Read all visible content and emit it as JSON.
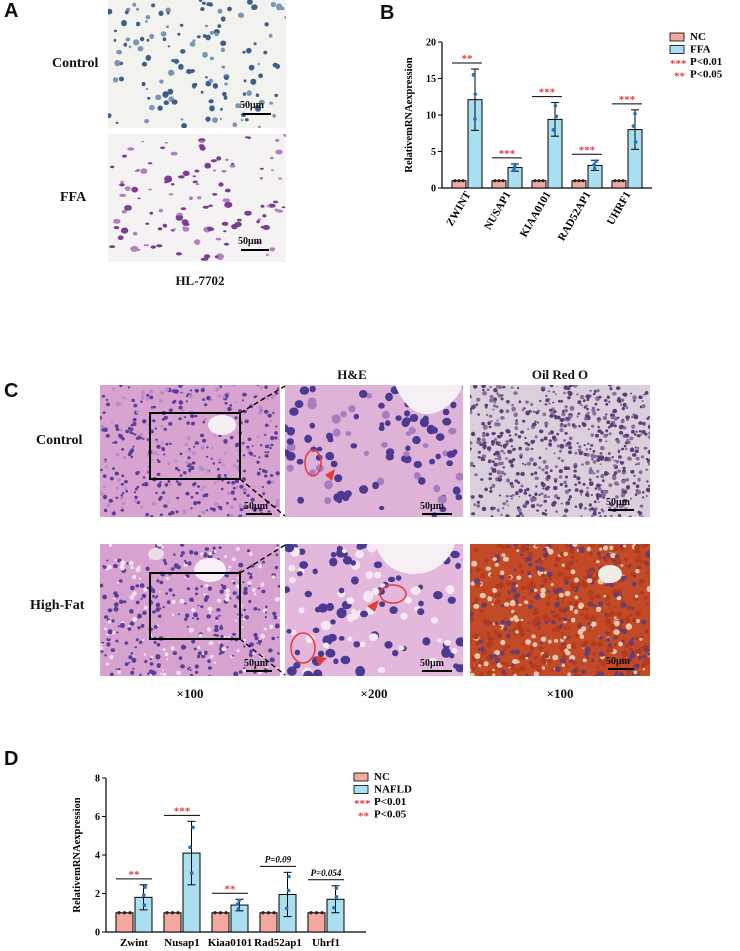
{
  "panelA": {
    "letter": "A",
    "row_labels": [
      "Control",
      "FFA"
    ],
    "scale_label": "50μm",
    "caption": "HL-7702"
  },
  "panelC": {
    "letter": "C",
    "col_header_he": "H&E",
    "col_header_oil": "Oil Red O",
    "row_labels": [
      "Control",
      "High-Fat"
    ],
    "scale_label": "50μm",
    "magnifications": [
      "×100",
      "×200",
      "×100"
    ]
  },
  "colors": {
    "nc_fill": "#f2a9a0",
    "ffa_fill": "#a9dff0",
    "sig_red": "#e53b3b",
    "he_bg": "#d9a3cf",
    "nuclei": "#5a3f9a",
    "oil_red": "#b23a1e"
  },
  "chart_data": [
    {
      "panel": "B",
      "type": "bar",
      "categories": [
        "ZWINT",
        "NUSAP1",
        "KIAA0101",
        "RAD52AP1",
        "UHRF1"
      ],
      "series": [
        {
          "name": "NC",
          "values": [
            1,
            1,
            1,
            1,
            1
          ],
          "errors": [
            0,
            0,
            0,
            0,
            0
          ]
        },
        {
          "name": "FFA",
          "values": [
            12.1,
            2.8,
            9.4,
            3.1,
            8.0
          ],
          "errors": [
            4.2,
            0.5,
            2.3,
            0.7,
            2.7
          ]
        }
      ],
      "significance": [
        "**",
        "***",
        "***",
        "***",
        "***"
      ],
      "legend": [
        "NC",
        "FFA",
        "*** P<0.01",
        "** P<0.05"
      ],
      "xlabel": "",
      "ylabel": "RelativemRNAexpression",
      "ylim": [
        0,
        20
      ],
      "yticks": [
        0,
        5,
        10,
        15,
        20
      ]
    },
    {
      "panel": "D",
      "type": "bar",
      "categories": [
        "Zwint",
        "Nusap1",
        "Kiaa0101",
        "Rad52ap1",
        "Uhrf1"
      ],
      "series": [
        {
          "name": "NC",
          "values": [
            1,
            1,
            1,
            1,
            1
          ],
          "errors": [
            0,
            0,
            0,
            0,
            0
          ]
        },
        {
          "name": "NAFLD",
          "values": [
            1.8,
            4.1,
            1.4,
            1.95,
            1.7
          ],
          "errors": [
            0.65,
            1.65,
            0.3,
            1.15,
            0.7
          ]
        }
      ],
      "significance": [
        "**",
        "***",
        "**",
        "P=0.09",
        "P=0.054"
      ],
      "legend": [
        "NC",
        "NAFLD",
        "*** P<0.01",
        "** P<0.05"
      ],
      "xlabel": "",
      "ylabel": "RelativemRNAexpression",
      "ylim": [
        0,
        8
      ],
      "yticks": [
        0,
        2,
        4,
        6,
        8
      ]
    }
  ]
}
